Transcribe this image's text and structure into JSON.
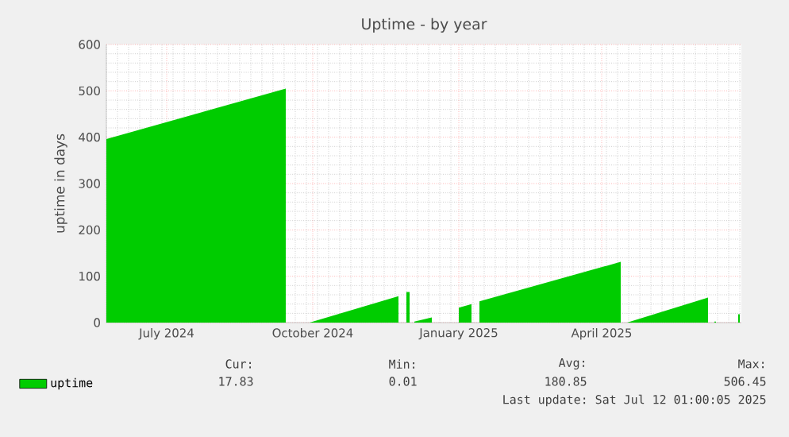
{
  "chart_data": {
    "type": "area",
    "title": "Uptime - by year",
    "ylabel": "uptime in days",
    "xlim": [
      "2024-06-07",
      "2025-07-12"
    ],
    "xticks": [
      {
        "value": "2024-07-15",
        "label": "July 2024"
      },
      {
        "value": "2024-10-15",
        "label": "October 2024"
      },
      {
        "value": "2025-01-15",
        "label": "January 2025"
      },
      {
        "value": "2025-04-15",
        "label": "April 2025"
      }
    ],
    "ylim": [
      0,
      600
    ],
    "yticks": [
      0,
      100,
      200,
      300,
      400,
      500,
      600
    ],
    "grid": true,
    "legend": "bottom",
    "series": [
      {
        "name": "uptime",
        "color": "#00cc00",
        "x": [
          "2024-06-07",
          "2024-09-28",
          "2024-09-29",
          "2024-10-13",
          "2024-12-08",
          "2024-12-09",
          "2024-12-13",
          "2024-12-15",
          "2024-12-16",
          "2024-12-18",
          "2024-12-29",
          "2024-12-30",
          "2025-01-15",
          "2025-01-23",
          "2025-01-24",
          "2025-01-28",
          "2025-04-27",
          "2025-04-28",
          "2025-05-01",
          "2025-06-21",
          "2025-06-22",
          "2025-06-25",
          "2025-06-26",
          "2025-06-27",
          "2025-07-10",
          "2025-07-11"
        ],
        "values": [
          396,
          505,
          null,
          0,
          57,
          null,
          66,
          66,
          null,
          2,
          11,
          null,
          32,
          40,
          null,
          46,
          131,
          null,
          0,
          54,
          null,
          2,
          2,
          null,
          17.83,
          18
        ]
      }
    ],
    "annotations": [
      "Cur:",
      "Min:",
      "Avg:",
      "Max:",
      "17.83",
      "0.01",
      "180.85",
      "506.45",
      "Last update: Sat Jul 12 01:00:05 2025"
    ]
  }
}
